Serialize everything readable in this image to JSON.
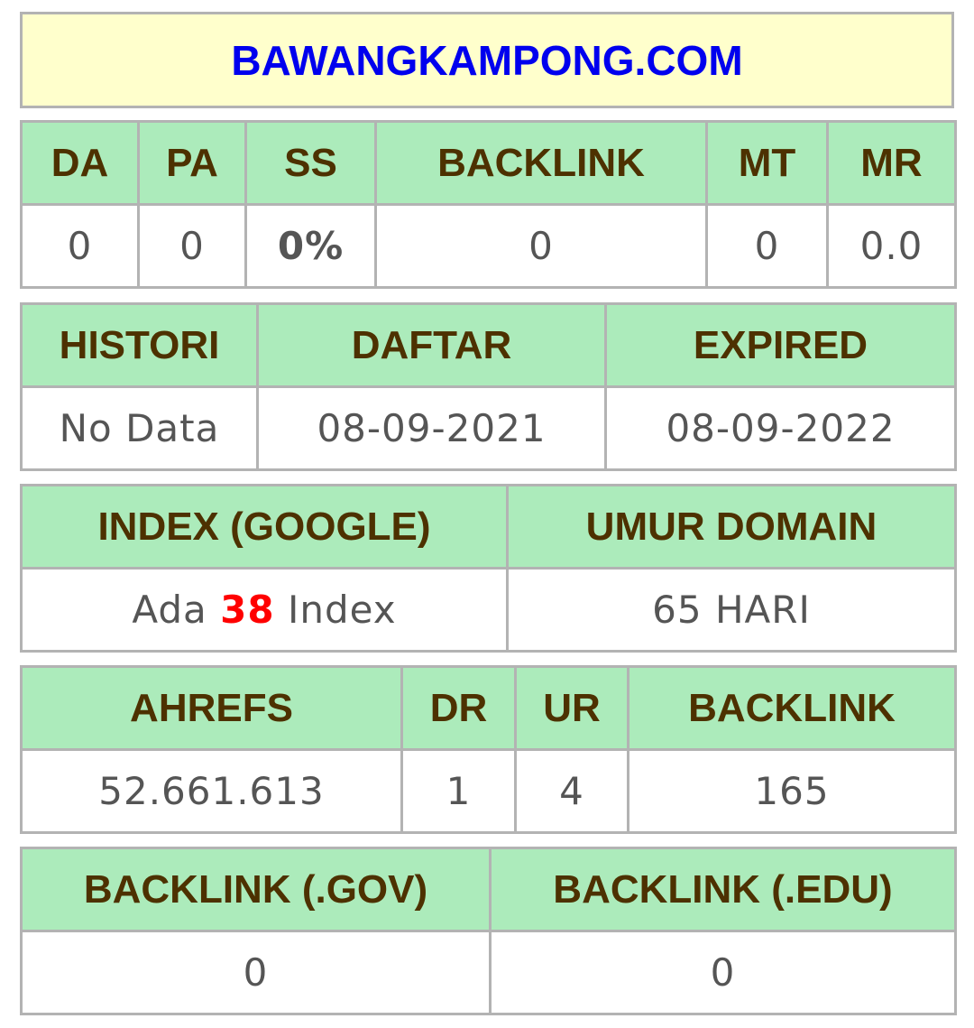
{
  "site": {
    "domain": "BAWANGKAMPONG.COM"
  },
  "moz": {
    "headers": {
      "da": "DA",
      "pa": "PA",
      "ss": "SS",
      "backlink": "BACKLINK",
      "mt": "MT",
      "mr": "MR"
    },
    "values": {
      "da": "0",
      "pa": "0",
      "ss": "0%",
      "backlink": "0",
      "mt": "0",
      "mr": "0.0"
    }
  },
  "dates": {
    "headers": {
      "histori": "HISTORI",
      "daftar": "DAFTAR",
      "expired": "EXPIRED"
    },
    "values": {
      "histori": "No Data",
      "daftar": "08-09-2021",
      "expired": "08-09-2022"
    }
  },
  "index": {
    "headers": {
      "google": "INDEX (GOOGLE)",
      "umur": "UMUR DOMAIN"
    },
    "values": {
      "google_prefix": "Ada ",
      "google_count": "38",
      "google_suffix": " Index",
      "umur": "65 HARI"
    }
  },
  "ahrefs": {
    "headers": {
      "ahrefs": "AHREFS",
      "dr": "DR",
      "ur": "UR",
      "backlink": "BACKLINK"
    },
    "values": {
      "ahrefs": "52.661.613",
      "dr": "1",
      "ur": "4",
      "backlink": "165"
    }
  },
  "special": {
    "headers": {
      "gov": "BACKLINK (.GOV)",
      "edu": "BACKLINK (.EDU)"
    },
    "values": {
      "gov": "0",
      "edu": "0"
    }
  },
  "colors": {
    "title_bg": "#ffffcc",
    "title_text": "#0000ee",
    "header_bg": "#acebbb",
    "header_text": "#4d3100",
    "value_text": "#555555",
    "ss_text": "#66cc00",
    "index_count_text": "#ff0000",
    "border": "#b3b3b3"
  }
}
